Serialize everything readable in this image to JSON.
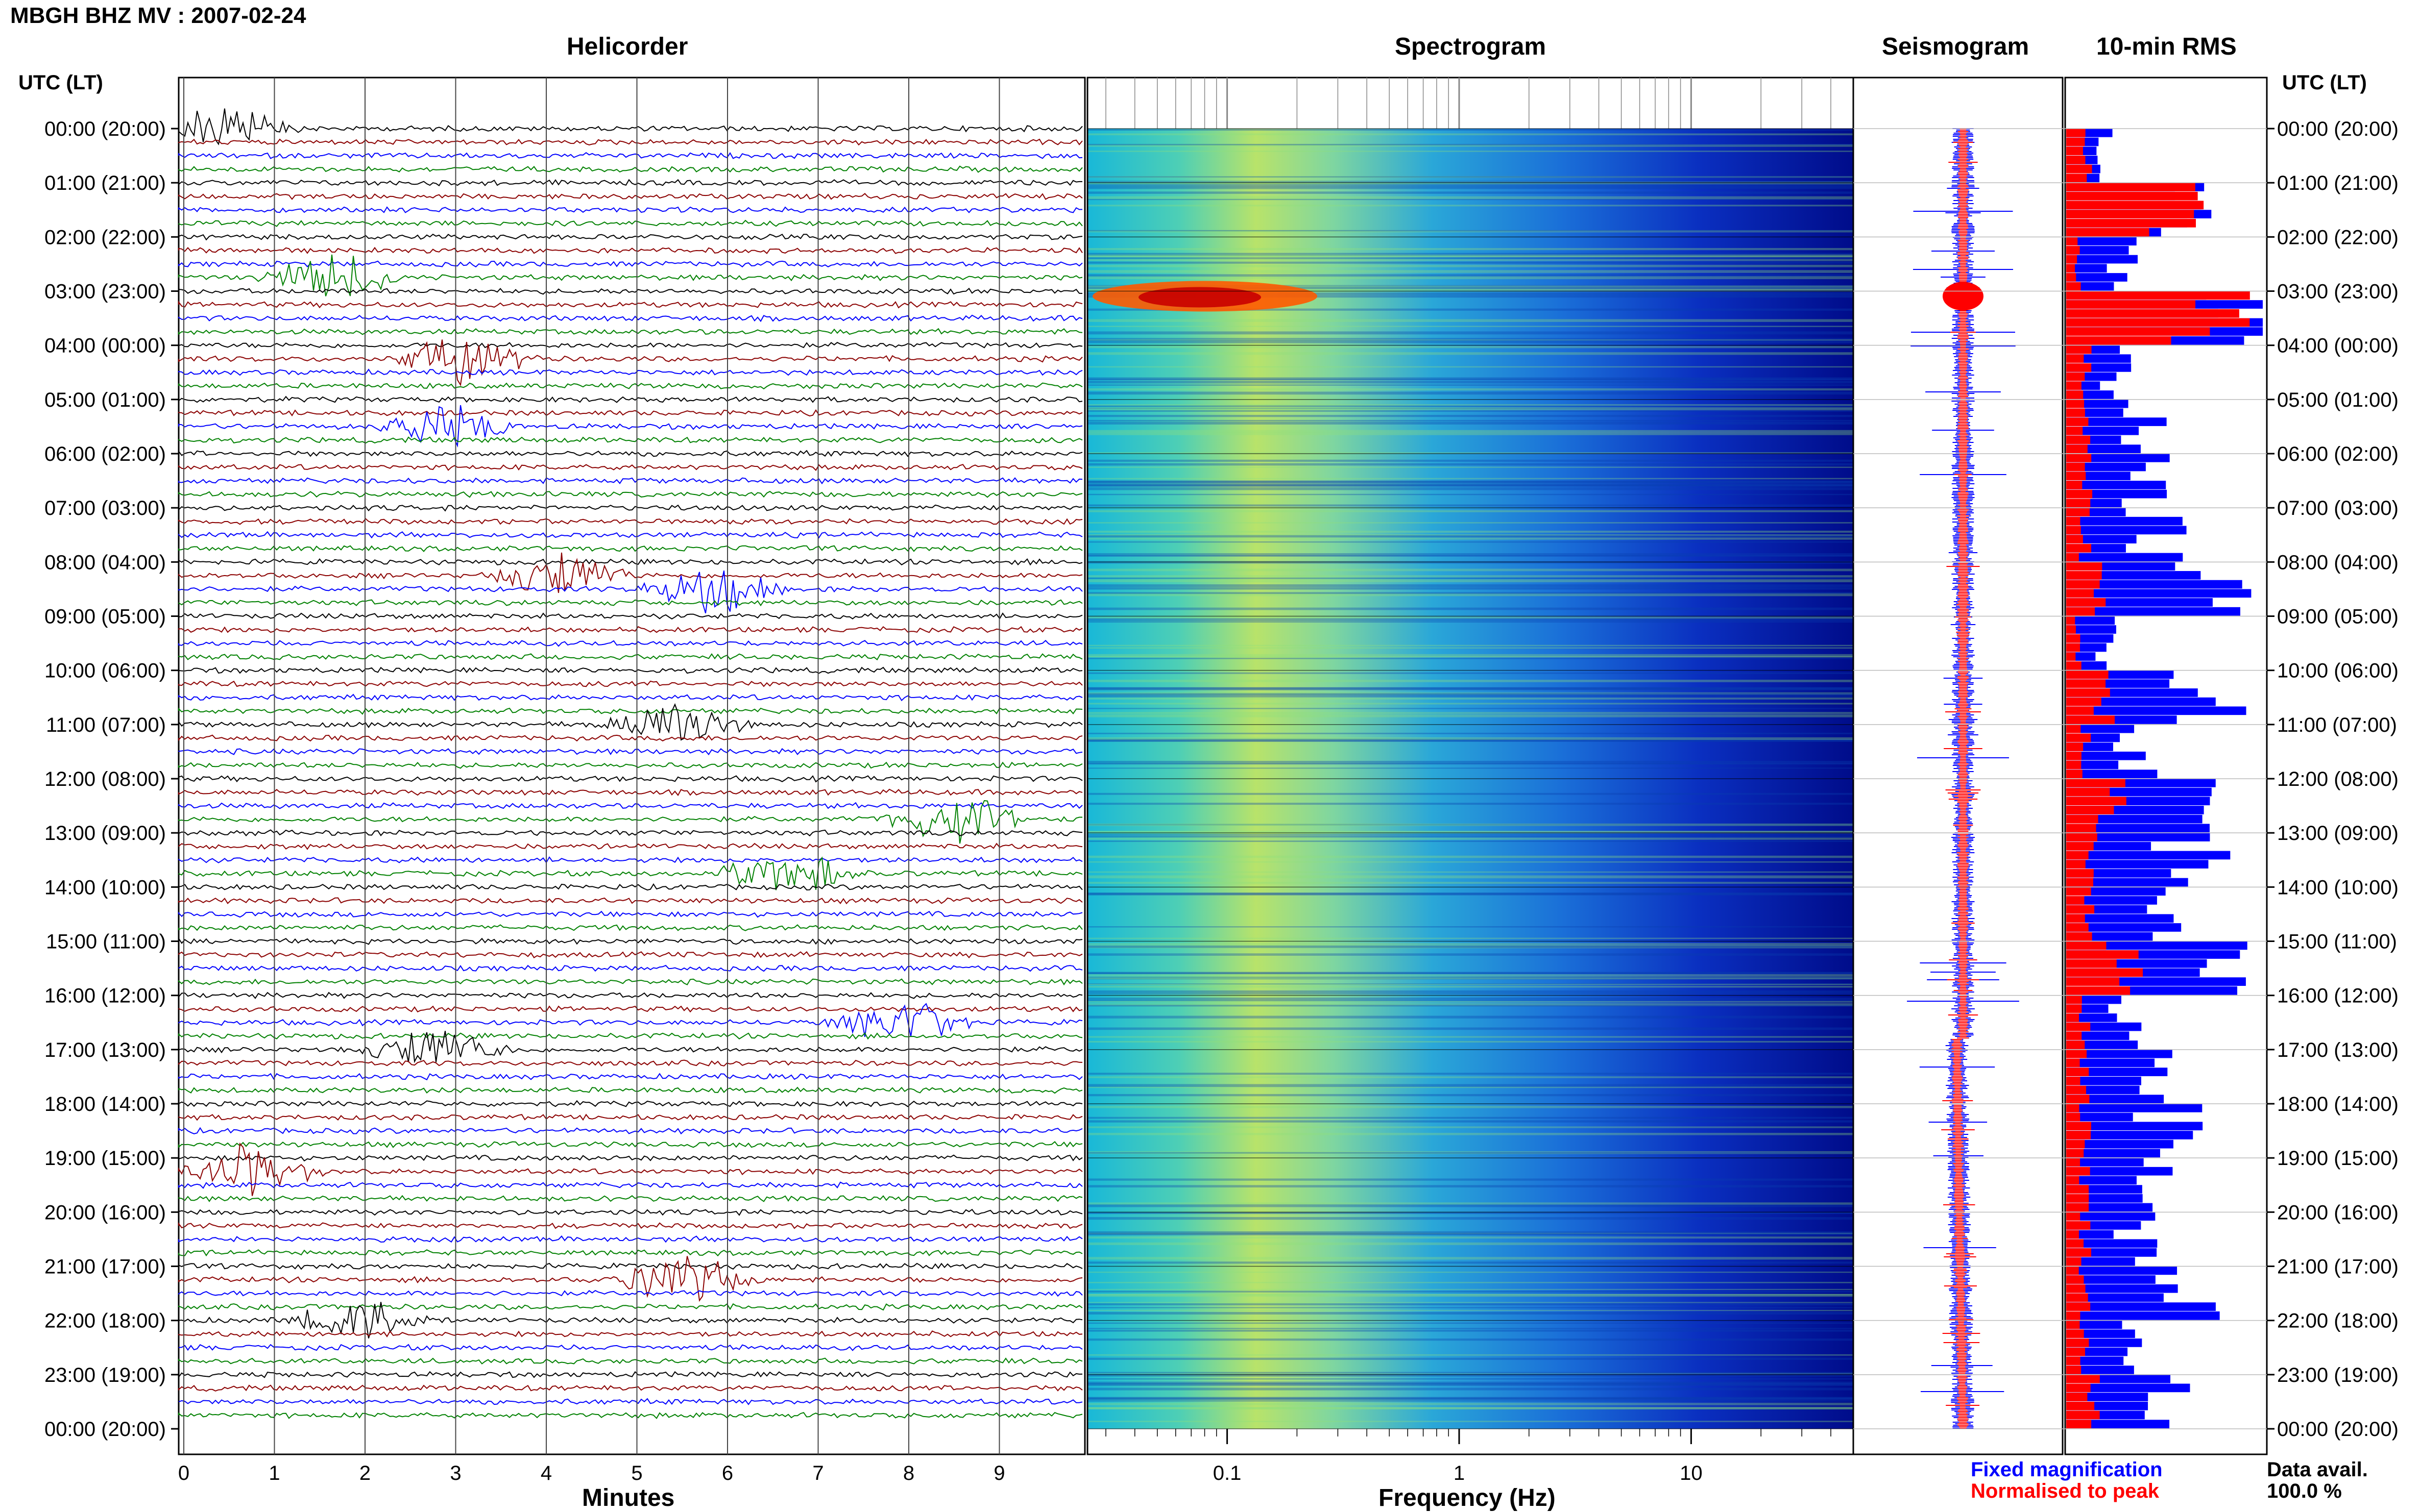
{
  "header": {
    "title": "MBGH BHZ MV : 2007-02-24"
  },
  "panels": {
    "helicorder": "Helicorder",
    "spectrogram": "Spectrogram",
    "seismogram": "Seismogram",
    "rms": "10-min RMS"
  },
  "axis": {
    "utc_label_left": "UTC (LT)",
    "utc_label_right": "UTC (LT)",
    "minutes_label": "Minutes",
    "frequency_label": "Frequency (Hz)",
    "minute_ticks": [
      "0",
      "1",
      "2",
      "3",
      "4",
      "5",
      "6",
      "7",
      "8",
      "9"
    ],
    "freq_ticks": [
      "0.1",
      "1",
      "10"
    ]
  },
  "time_labels": [
    "00:00 (20:00)",
    "01:00 (21:00)",
    "02:00 (22:00)",
    "03:00 (23:00)",
    "04:00 (00:00)",
    "05:00 (01:00)",
    "06:00 (02:00)",
    "07:00 (03:00)",
    "08:00 (04:00)",
    "09:00 (05:00)",
    "10:00 (06:00)",
    "11:00 (07:00)",
    "12:00 (08:00)",
    "13:00 (09:00)",
    "14:00 (10:00)",
    "15:00 (11:00)",
    "16:00 (12:00)",
    "17:00 (13:00)",
    "18:00 (14:00)",
    "19:00 (15:00)",
    "20:00 (16:00)",
    "21:00 (17:00)",
    "22:00 (18:00)",
    "23:00 (19:00)",
    "00:00 (20:00)"
  ],
  "legend": {
    "fixed": "Fixed magnification",
    "normalised": "Normalised to peak",
    "avail_label": "Data avail.",
    "avail_value": "100.0 %"
  },
  "colors": {
    "fixed": "#0000ff",
    "normalised": "#ff0000",
    "helicorder_traces": [
      "#000000",
      "#8b0000",
      "#0000ff",
      "#008000"
    ]
  },
  "chart_data": {
    "type": "bar",
    "title": "10-min RMS",
    "categories_hours": [
      0,
      1,
      2,
      3,
      4,
      5,
      6,
      7,
      8,
      9,
      10,
      11,
      12,
      13,
      14,
      15,
      16,
      17,
      18,
      19,
      20,
      21,
      22,
      23
    ],
    "series": [
      {
        "name": "Fixed magnification",
        "color": "#0000ff",
        "values": [
          0.3,
          1.05,
          0.45,
          1.25,
          0.4,
          0.62,
          0.6,
          0.7,
          1.1,
          0.35,
          1.15,
          0.55,
          1.05,
          1.0,
          0.95,
          1.05,
          0.5,
          0.85,
          0.8,
          0.7,
          0.55,
          0.95,
          0.45,
          0.75
        ]
      },
      {
        "name": "Normalised to peak",
        "color": "#ff0000",
        "values": [
          0.15,
          0.8,
          0.1,
          1.2,
          0.15,
          0.15,
          0.15,
          0.15,
          0.25,
          0.1,
          0.3,
          0.15,
          0.35,
          0.2,
          0.2,
          0.45,
          0.15,
          0.15,
          0.15,
          0.15,
          0.15,
          0.15,
          0.15,
          0.2
        ]
      }
    ]
  }
}
